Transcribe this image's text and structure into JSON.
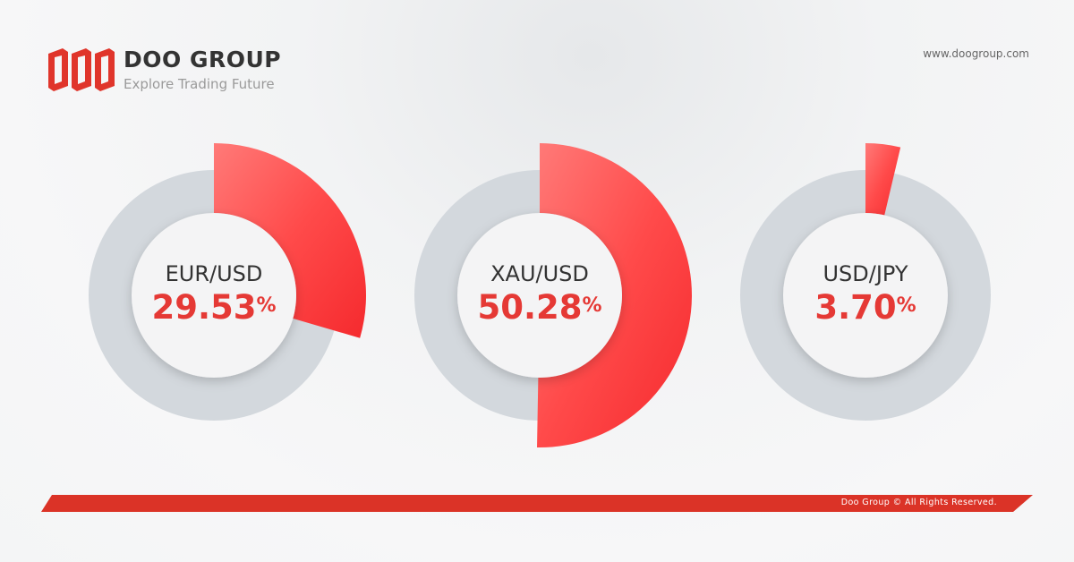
{
  "brand": {
    "name": "DOO GROUP",
    "tagline": "Explore Trading Future",
    "url": "www.doogroup.com",
    "footer": "Doo Group © All Rights Reserved."
  },
  "colors": {
    "accent": "#e53935",
    "ring": "#d3d8dd",
    "footer": "#db3327"
  },
  "chart_data": {
    "type": "pie",
    "categories": [
      "EUR/USD",
      "XAU/USD",
      "USD/JPY"
    ],
    "values": [
      29.53,
      50.28,
      3.7
    ],
    "value_labels": [
      "29.53",
      "50.28",
      "3.70"
    ],
    "unit": "%"
  }
}
